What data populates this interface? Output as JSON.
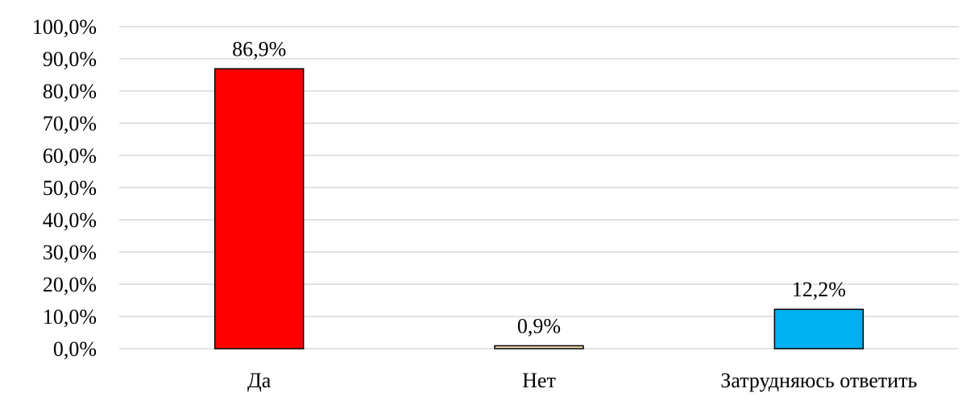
{
  "chart_data": {
    "type": "bar",
    "categories": [
      "Да",
      "Нет",
      "Затрудняюсь ответить"
    ],
    "values": [
      86.9,
      0.9,
      12.2
    ],
    "data_labels": [
      "86,9%",
      "0,9%",
      "12,2%"
    ],
    "colors": [
      "#ff0000",
      "#f5deb3",
      "#00b0f0"
    ],
    "ylim": [
      0,
      100
    ],
    "yticks": [
      0,
      10,
      20,
      30,
      40,
      50,
      60,
      70,
      80,
      90,
      100
    ],
    "ytick_labels": [
      "0,0%",
      "10,0%",
      "20,0%",
      "30,0%",
      "40,0%",
      "50,0%",
      "60,0%",
      "70,0%",
      "80,0%",
      "90,0%",
      "100,0%"
    ],
    "grid": true,
    "legend": "none",
    "title": "",
    "xlabel": "",
    "ylabel": ""
  }
}
